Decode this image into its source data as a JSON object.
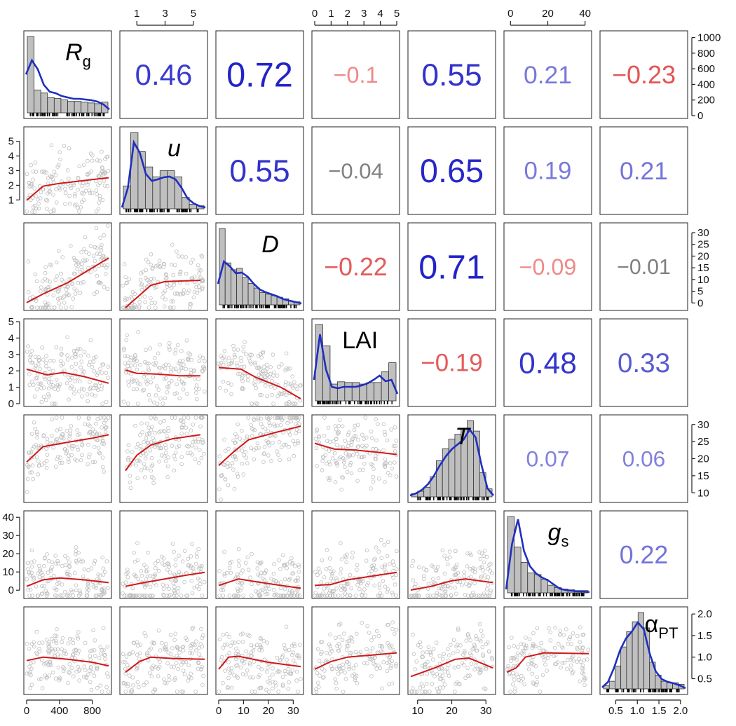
{
  "chart_data": {
    "type": "scatter",
    "plot_kind": "pairs-scatterplot-matrix",
    "colors": {
      "scatter_points": "#bdbdbd",
      "smooth_line": "#d01818",
      "density_line": "#1f2fbf",
      "histogram_bar": "#bfbfbf",
      "positive_corr": "#1f2fbf",
      "negative_corr": "#e03c3c",
      "neutral_corr": "#808080"
    },
    "variables": [
      {
        "id": "Rg",
        "label_main": "R",
        "label_sub": "g",
        "italic": true,
        "range": [
          0,
          1000
        ],
        "ticks": [
          "0",
          "400",
          "800"
        ],
        "tick_values": [
          0,
          400,
          800
        ],
        "axis_side": "bottom",
        "hist": [
          1000,
          300,
          260,
          200,
          190,
          170,
          150,
          150,
          140,
          130,
          120,
          140
        ],
        "density": [
          0.55,
          0.75,
          0.62,
          0.4,
          0.3,
          0.28,
          0.24,
          0.22,
          0.2,
          0.2,
          0.19,
          0.18,
          0.16,
          0.12,
          0.05
        ]
      },
      {
        "id": "u",
        "label_main": "u",
        "label_sub": "",
        "italic": true,
        "range": [
          0,
          5.8
        ],
        "ticks": [
          "1",
          "3",
          "5"
        ],
        "tick_values": [
          1,
          3,
          5
        ],
        "axis_side": "top",
        "hist": [
          0.3,
          1.0,
          0.75,
          0.55,
          0.42,
          0.5,
          0.5,
          0.42,
          0.15,
          0.06,
          0.04
        ],
        "density": [
          0.02,
          0.3,
          0.95,
          0.8,
          0.5,
          0.4,
          0.42,
          0.45,
          0.46,
          0.42,
          0.3,
          0.15,
          0.08,
          0.04,
          0.02
        ]
      },
      {
        "id": "D",
        "label_main": "D",
        "label_sub": "",
        "italic": true,
        "range": [
          0,
          33
        ],
        "ticks": [
          "0",
          "10",
          "20",
          "30"
        ],
        "tick_values": [
          0,
          10,
          20,
          30
        ],
        "axis_side": "bottom",
        "hist": [
          1.0,
          0.55,
          0.46,
          0.48,
          0.36,
          0.28,
          0.22,
          0.16,
          0.14,
          0.12,
          0.1,
          0.08,
          0.05,
          0.04
        ],
        "density": [
          0.3,
          0.62,
          0.55,
          0.45,
          0.46,
          0.4,
          0.3,
          0.22,
          0.18,
          0.15,
          0.12,
          0.08,
          0.06,
          0.04,
          0.02
        ]
      },
      {
        "id": "LAI",
        "label_main": "LAI",
        "label_sub": "",
        "italic": false,
        "range": [
          0,
          5
        ],
        "ticks": [
          "0",
          "1",
          "2",
          "3",
          "4",
          "5"
        ],
        "tick_values": [
          0,
          1,
          2,
          3,
          4,
          5
        ],
        "axis_side": "top",
        "hist": [
          1.0,
          0.72,
          0.22,
          0.25,
          0.24,
          0.24,
          0.22,
          0.24,
          0.24,
          0.38,
          0.5
        ],
        "density": [
          0.3,
          0.95,
          0.45,
          0.2,
          0.18,
          0.2,
          0.2,
          0.2,
          0.22,
          0.25,
          0.3,
          0.36,
          0.28,
          0.3,
          0.1
        ]
      },
      {
        "id": "T",
        "label_main": "T",
        "label_sub": "",
        "italic": true,
        "range": [
          8,
          32
        ],
        "ticks": [
          "10",
          "20",
          "30"
        ],
        "tick_values": [
          10,
          20,
          30
        ],
        "axis_side": "bottom",
        "hist": [
          0.04,
          0.07,
          0.12,
          0.25,
          0.45,
          0.6,
          0.72,
          0.78,
          0.85,
          0.95,
          0.82,
          0.3,
          0.1
        ],
        "density": [
          0.02,
          0.05,
          0.1,
          0.18,
          0.3,
          0.45,
          0.58,
          0.68,
          0.75,
          0.82,
          0.96,
          0.85,
          0.45,
          0.12,
          0.02
        ]
      },
      {
        "id": "gs",
        "label_main": "g",
        "label_sub": "s",
        "italic": true,
        "range": [
          -2,
          42
        ],
        "ticks": [
          "0",
          "20",
          "40"
        ],
        "tick_values": [
          0,
          20,
          40
        ],
        "axis_side": "top",
        "hist": [
          1.0,
          0.6,
          0.4,
          0.26,
          0.24,
          0.18,
          0.1,
          0.07,
          0.05,
          0.04,
          0.03,
          0.03
        ],
        "density": [
          0.05,
          0.7,
          1.05,
          0.6,
          0.38,
          0.28,
          0.22,
          0.18,
          0.12,
          0.06,
          0.04,
          0.03,
          0.02,
          0.02,
          0.01
        ]
      },
      {
        "id": "aPT",
        "label_main": "α",
        "label_sub": "PT",
        "italic": false,
        "range": [
          0.2,
          2.1
        ],
        "ticks": [
          "0.5",
          "1.0",
          "1.5",
          "2.0"
        ],
        "tick_values": [
          0.5,
          1.0,
          1.5,
          2.0
        ],
        "axis_side": "right",
        "hist": [
          0.04,
          0.1,
          0.3,
          0.55,
          0.75,
          0.88,
          1.0,
          0.8,
          0.35,
          0.18,
          0.1,
          0.08,
          0.08,
          0.06
        ],
        "density": [
          0.02,
          0.1,
          0.3,
          0.55,
          0.72,
          0.82,
          0.95,
          0.85,
          0.5,
          0.25,
          0.14,
          0.1,
          0.08,
          0.05,
          0.01
        ]
      }
    ],
    "right_axis_labels": {
      "row_0": {
        "ticks": [
          "0",
          "200",
          "400",
          "600",
          "800",
          "1000"
        ],
        "tick_values": [
          0,
          200,
          400,
          600,
          800,
          1000
        ],
        "range": [
          0,
          1050
        ]
      },
      "row_2": {
        "ticks": [
          "0",
          "5",
          "10",
          "15",
          "20",
          "25",
          "30"
        ],
        "tick_values": [
          0,
          5,
          10,
          15,
          20,
          25,
          30
        ],
        "range": [
          -2,
          33
        ]
      },
      "row_4": {
        "ticks": [
          "10",
          "15",
          "20",
          "25",
          "30"
        ],
        "tick_values": [
          10,
          15,
          20,
          25,
          30
        ],
        "range": [
          8,
          32
        ]
      },
      "row_6": {
        "ticks": [
          "0.5",
          "1.0",
          "1.5",
          "2.0"
        ],
        "tick_values": [
          0.5,
          1.0,
          1.5,
          2.0
        ],
        "range": [
          0.2,
          2.1
        ]
      }
    },
    "left_axis_labels": {
      "row_1": {
        "ticks": [
          "1",
          "2",
          "3",
          "4",
          "5"
        ],
        "tick_values": [
          1,
          2,
          3,
          4,
          5
        ],
        "range": [
          0.2,
          5.8
        ]
      },
      "row_3": {
        "ticks": [
          "0",
          "1",
          "2",
          "3",
          "4",
          "5"
        ],
        "tick_values": [
          0,
          1,
          2,
          3,
          4,
          5
        ],
        "range": [
          0,
          5
        ]
      },
      "row_5": {
        "ticks": [
          "0",
          "10",
          "20",
          "30",
          "40"
        ],
        "tick_values": [
          0,
          10,
          20,
          30,
          40
        ],
        "range": [
          -3,
          42
        ]
      }
    },
    "correlations": [
      {
        "row": 0,
        "col": 1,
        "text": "0.46",
        "value": 0.46,
        "color": "#3a3ad0"
      },
      {
        "row": 0,
        "col": 2,
        "text": "0.72",
        "value": 0.72,
        "color": "#2323c8"
      },
      {
        "row": 0,
        "col": 3,
        "text": "−0.1",
        "value": -0.1,
        "color": "#ee8a8a"
      },
      {
        "row": 0,
        "col": 4,
        "text": "0.55",
        "value": 0.55,
        "color": "#3232cc"
      },
      {
        "row": 0,
        "col": 5,
        "text": "0.21",
        "value": 0.21,
        "color": "#7878dc"
      },
      {
        "row": 0,
        "col": 6,
        "text": "−0.23",
        "value": -0.23,
        "color": "#e45454"
      },
      {
        "row": 1,
        "col": 2,
        "text": "0.55",
        "value": 0.55,
        "color": "#3232cc"
      },
      {
        "row": 1,
        "col": 3,
        "text": "−0.04",
        "value": -0.04,
        "color": "#808080"
      },
      {
        "row": 1,
        "col": 4,
        "text": "0.65",
        "value": 0.65,
        "color": "#2828c8"
      },
      {
        "row": 1,
        "col": 5,
        "text": "0.19",
        "value": 0.19,
        "color": "#7a7ade"
      },
      {
        "row": 1,
        "col": 6,
        "text": "0.21",
        "value": 0.21,
        "color": "#7474dc"
      },
      {
        "row": 2,
        "col": 3,
        "text": "−0.22",
        "value": -0.22,
        "color": "#e45a5a"
      },
      {
        "row": 2,
        "col": 4,
        "text": "0.71",
        "value": 0.71,
        "color": "#2323c8"
      },
      {
        "row": 2,
        "col": 5,
        "text": "−0.09",
        "value": -0.09,
        "color": "#ee8a8a"
      },
      {
        "row": 2,
        "col": 6,
        "text": "−0.01",
        "value": -0.01,
        "color": "#808080"
      },
      {
        "row": 3,
        "col": 4,
        "text": "−0.19",
        "value": -0.19,
        "color": "#e45a5a"
      },
      {
        "row": 3,
        "col": 5,
        "text": "0.48",
        "value": 0.48,
        "color": "#3434cc"
      },
      {
        "row": 3,
        "col": 6,
        "text": "0.33",
        "value": 0.33,
        "color": "#5a5ad4"
      },
      {
        "row": 4,
        "col": 5,
        "text": "0.07",
        "value": 0.07,
        "color": "#8080e0"
      },
      {
        "row": 4,
        "col": 6,
        "text": "0.06",
        "value": 0.06,
        "color": "#8080e0"
      },
      {
        "row": 5,
        "col": 6,
        "text": "0.22",
        "value": 0.22,
        "color": "#7474dc"
      }
    ],
    "smooth_lines": [
      {
        "row": 1,
        "col": 0,
        "points": [
          [
            0,
            0.8
          ],
          [
            200,
            1.8
          ],
          [
            400,
            2.0
          ],
          [
            700,
            2.2
          ],
          [
            1000,
            2.4
          ]
        ]
      },
      {
        "row": 2,
        "col": 0,
        "points": [
          [
            0,
            2
          ],
          [
            200,
            5.5
          ],
          [
            500,
            10
          ],
          [
            800,
            16
          ],
          [
            1000,
            20
          ]
        ]
      },
      {
        "row": 2,
        "col": 1,
        "points": [
          [
            0.2,
            0
          ],
          [
            1.2,
            5
          ],
          [
            2,
            9
          ],
          [
            3,
            10.5
          ],
          [
            5.5,
            11
          ]
        ]
      },
      {
        "row": 3,
        "col": 0,
        "points": [
          [
            0,
            2.1
          ],
          [
            250,
            1.75
          ],
          [
            450,
            1.9
          ],
          [
            700,
            1.65
          ],
          [
            1000,
            1.25
          ]
        ]
      },
      {
        "row": 3,
        "col": 1,
        "points": [
          [
            0.2,
            2.05
          ],
          [
            1,
            1.85
          ],
          [
            2.5,
            1.8
          ],
          [
            4,
            1.7
          ],
          [
            5.5,
            1.7
          ]
        ]
      },
      {
        "row": 3,
        "col": 2,
        "points": [
          [
            0,
            2.2
          ],
          [
            9,
            2.1
          ],
          [
            15,
            1.6
          ],
          [
            25,
            1.0
          ],
          [
            33,
            0.3
          ]
        ]
      },
      {
        "row": 4,
        "col": 0,
        "points": [
          [
            0,
            19
          ],
          [
            200,
            23.5
          ],
          [
            500,
            24.8
          ],
          [
            800,
            26
          ],
          [
            1000,
            27
          ]
        ]
      },
      {
        "row": 4,
        "col": 1,
        "points": [
          [
            0.2,
            16.5
          ],
          [
            1,
            21
          ],
          [
            2,
            24
          ],
          [
            3.5,
            25.8
          ],
          [
            5.5,
            27
          ]
        ]
      },
      {
        "row": 4,
        "col": 2,
        "points": [
          [
            0,
            18
          ],
          [
            6,
            22
          ],
          [
            12,
            25.5
          ],
          [
            22,
            27.5
          ],
          [
            33,
            29.5
          ]
        ]
      },
      {
        "row": 4,
        "col": 3,
        "points": [
          [
            0,
            24.5
          ],
          [
            1.2,
            22.8
          ],
          [
            2.5,
            22.5
          ],
          [
            4,
            21.8
          ],
          [
            5,
            21.2
          ]
        ]
      },
      {
        "row": 5,
        "col": 0,
        "points": [
          [
            0,
            3
          ],
          [
            200,
            6.5
          ],
          [
            400,
            7.5
          ],
          [
            700,
            6.5
          ],
          [
            1000,
            5
          ]
        ]
      },
      {
        "row": 5,
        "col": 1,
        "points": [
          [
            0.2,
            3
          ],
          [
            1.5,
            5
          ],
          [
            3,
            7
          ],
          [
            4.5,
            9
          ],
          [
            5.8,
            10.5
          ]
        ]
      },
      {
        "row": 5,
        "col": 2,
        "points": [
          [
            0,
            3.5
          ],
          [
            8,
            7
          ],
          [
            15,
            5.5
          ],
          [
            25,
            3.5
          ],
          [
            33,
            2
          ]
        ]
      },
      {
        "row": 5,
        "col": 3,
        "points": [
          [
            0,
            3.5
          ],
          [
            1,
            4
          ],
          [
            2,
            6.5
          ],
          [
            3.5,
            8.5
          ],
          [
            5,
            10.5
          ]
        ]
      },
      {
        "row": 5,
        "col": 4,
        "points": [
          [
            8,
            1
          ],
          [
            14,
            3
          ],
          [
            20,
            6
          ],
          [
            24,
            7
          ],
          [
            32,
            5
          ]
        ]
      },
      {
        "row": 6,
        "col": 0,
        "points": [
          [
            0,
            0.92
          ],
          [
            200,
            1.0
          ],
          [
            500,
            0.95
          ],
          [
            800,
            0.88
          ],
          [
            1000,
            0.8
          ]
        ]
      },
      {
        "row": 6,
        "col": 1,
        "points": [
          [
            0.2,
            0.65
          ],
          [
            1.2,
            0.9
          ],
          [
            2,
            1.0
          ],
          [
            3.5,
            0.97
          ],
          [
            5.8,
            0.95
          ]
        ]
      },
      {
        "row": 6,
        "col": 2,
        "points": [
          [
            0,
            0.72
          ],
          [
            4,
            1.0
          ],
          [
            8,
            1.02
          ],
          [
            20,
            0.88
          ],
          [
            33,
            0.78
          ]
        ]
      },
      {
        "row": 6,
        "col": 3,
        "points": [
          [
            0,
            0.72
          ],
          [
            1,
            0.9
          ],
          [
            2,
            1.0
          ],
          [
            3.5,
            1.05
          ],
          [
            5,
            1.1
          ]
        ]
      },
      {
        "row": 6,
        "col": 4,
        "points": [
          [
            8,
            0.55
          ],
          [
            15,
            0.75
          ],
          [
            21,
            0.95
          ],
          [
            25,
            0.98
          ],
          [
            32,
            0.75
          ]
        ]
      },
      {
        "row": 6,
        "col": 5,
        "points": [
          [
            -2,
            0.65
          ],
          [
            3,
            0.75
          ],
          [
            8,
            1.0
          ],
          [
            18,
            1.1
          ],
          [
            42,
            1.08
          ]
        ]
      }
    ]
  }
}
